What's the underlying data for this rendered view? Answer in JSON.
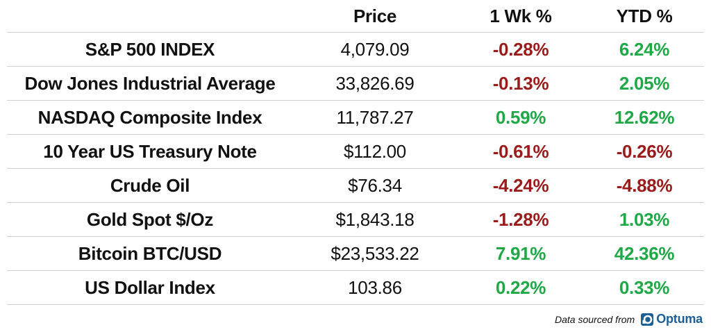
{
  "table": {
    "headers": [
      "",
      "Price",
      "1 Wk %",
      "YTD %"
    ],
    "rows": [
      {
        "name": "S&P 500 INDEX",
        "price": "4,079.09",
        "wk": "-0.28%",
        "ytd": "6.24%"
      },
      {
        "name": "Dow Jones Industrial Average",
        "price": "33,826.69",
        "wk": "-0.13%",
        "ytd": "2.05%"
      },
      {
        "name": "NASDAQ Composite Index",
        "price": "11,787.27",
        "wk": "0.59%",
        "ytd": "12.62%"
      },
      {
        "name": "10 Year US Treasury Note",
        "price": "$112.00",
        "wk": "-0.61%",
        "ytd": "-0.26%"
      },
      {
        "name": "Crude Oil",
        "price": "$76.34",
        "wk": "-4.24%",
        "ytd": "-4.88%"
      },
      {
        "name": "Gold Spot $/Oz",
        "price": "$1,843.18",
        "wk": "-1.28%",
        "ytd": "1.03%"
      },
      {
        "name": "Bitcoin BTC/USD",
        "price": "$23,533.22",
        "wk": "7.91%",
        "ytd": "42.36%"
      },
      {
        "name": "US Dollar Index",
        "price": "103.86",
        "wk": "0.22%",
        "ytd": "0.33%"
      }
    ]
  },
  "chart_data": {
    "type": "table",
    "columns": [
      "",
      "Price",
      "1 Wk %",
      "YTD %"
    ],
    "rows": [
      [
        "S&P 500 INDEX",
        4079.09,
        -0.28,
        6.24
      ],
      [
        "Dow Jones Industrial Average",
        33826.69,
        -0.13,
        2.05
      ],
      [
        "NASDAQ Composite Index",
        11787.27,
        0.59,
        12.62
      ],
      [
        "10 Year US Treasury Note",
        112.0,
        -0.61,
        -0.26
      ],
      [
        "Crude Oil",
        76.34,
        -4.24,
        -4.88
      ],
      [
        "Gold Spot $/Oz",
        1843.18,
        -1.28,
        1.03
      ],
      [
        "Bitcoin BTC/USD",
        23533.22,
        7.91,
        42.36
      ],
      [
        "US Dollar Index",
        103.86,
        0.22,
        0.33
      ]
    ]
  },
  "footer": {
    "source_text": "Data sourced from",
    "logo_text": "Optuma",
    "logo_icon": "optuma-logo-icon"
  },
  "colors": {
    "positive": "#1fa846",
    "negative": "#9b1b1b",
    "logo": "#1a5f96"
  }
}
